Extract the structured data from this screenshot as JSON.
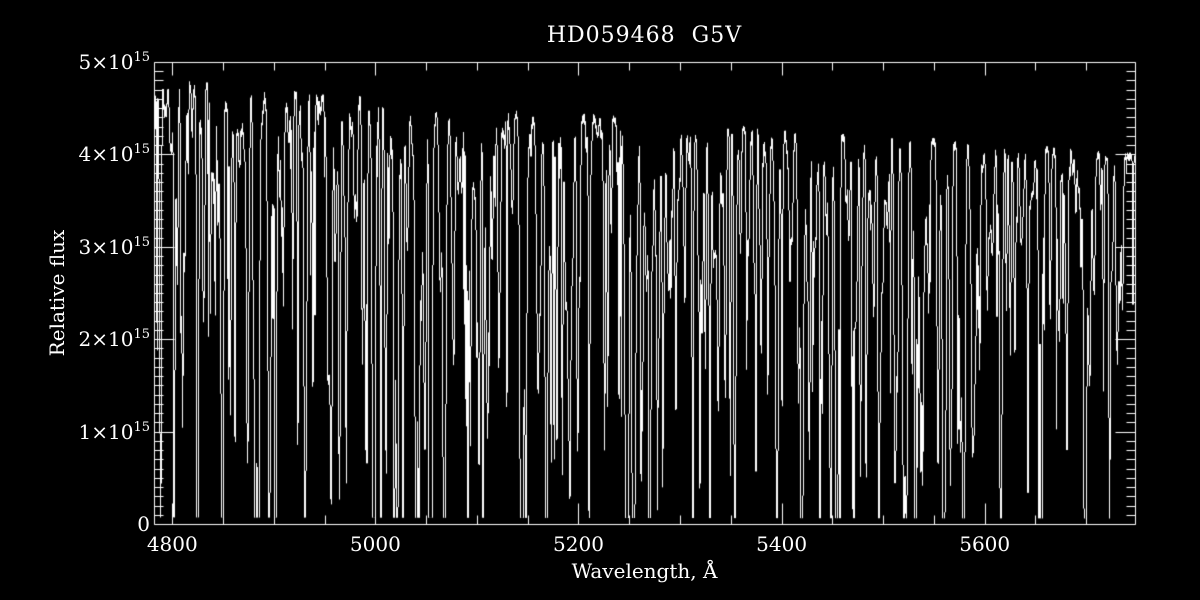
{
  "figure": {
    "background": "#000000",
    "foreground": "#ffffff"
  },
  "chart_data": {
    "type": "line",
    "title": "HD059468  G5V",
    "xlabel": "Wavelength, Å",
    "ylabel": "Relative flux",
    "xlim": [
      4782,
      5748
    ],
    "ylim": [
      0,
      5000000000000000.0
    ],
    "grid": "off",
    "legend": "none",
    "x_ticks": [
      {
        "value": 4800,
        "label": "4800"
      },
      {
        "value": 5000,
        "label": "5000"
      },
      {
        "value": 5200,
        "label": "5200"
      },
      {
        "value": 5400,
        "label": "5400"
      },
      {
        "value": 5600,
        "label": "5600"
      }
    ],
    "x_minor_step": 50,
    "y_ticks": [
      {
        "value": 5000000000000000.0,
        "mantissa": "5×10",
        "exp": "15"
      },
      {
        "value": 4000000000000000.0,
        "mantissa": "4×10",
        "exp": "15"
      },
      {
        "value": 3000000000000000.0,
        "mantissa": "3×10",
        "exp": "15"
      },
      {
        "value": 2000000000000000.0,
        "mantissa": "2×10",
        "exp": "15"
      },
      {
        "value": 1000000000000000.0,
        "mantissa": "1×10",
        "exp": "15"
      },
      {
        "value": 0,
        "mantissa": "0",
        "exp": ""
      }
    ],
    "y_minor_step": 100000000000000.0,
    "series_description": "Stellar absorption spectrum: continuum anchors plus absorption lines (flux vs wavelength in Angstroms)",
    "continuum": [
      [
        4782,
        4740000000000000.0
      ],
      [
        4800,
        4770000000000000.0
      ],
      [
        4830,
        4740000000000000.0
      ],
      [
        4861,
        4670000000000000.0
      ],
      [
        4890,
        4680000000000000.0
      ],
      [
        4920,
        4650000000000000.0
      ],
      [
        4950,
        4620000000000000.0
      ],
      [
        5000,
        4570000000000000.0
      ],
      [
        5050,
        4520000000000000.0
      ],
      [
        5100,
        4480000000000000.0
      ],
      [
        5150,
        4440000000000000.0
      ],
      [
        5200,
        4400000000000000.0
      ],
      [
        5250,
        4370000000000000.0
      ],
      [
        5300,
        4330000000000000.0
      ],
      [
        5350,
        4280000000000000.0
      ],
      [
        5400,
        4240000000000000.0
      ],
      [
        5450,
        4200000000000000.0
      ],
      [
        5500,
        4160000000000000.0
      ],
      [
        5550,
        4130000000000000.0
      ],
      [
        5600,
        4100000000000000.0
      ],
      [
        5650,
        4060000000000000.0
      ],
      [
        5700,
        4010000000000000.0
      ],
      [
        5748,
        3970000000000000.0
      ]
    ],
    "strong_lines": [
      {
        "wl": 4788.0,
        "flux_min": 2300000000000000.0,
        "sigma": 0.5
      },
      {
        "wl": 4808.0,
        "flux_min": 2550000000000000.0,
        "sigma": 0.5
      },
      {
        "wl": 4824.0,
        "flux_min": 2420000000000000.0,
        "sigma": 0.5
      },
      {
        "wl": 4837.0,
        "flux_min": 2400000000000000.0,
        "sigma": 0.5
      },
      {
        "wl": 4861.3,
        "flux_min": 880000000000000.0,
        "sigma": 0.55
      },
      {
        "wl": 4884.0,
        "flux_min": 1780000000000000.0,
        "sigma": 0.5
      },
      {
        "wl": 4901.0,
        "flux_min": 1990000000000000.0,
        "sigma": 0.5
      },
      {
        "wl": 4923.0,
        "flux_min": 1370000000000000.0,
        "sigma": 0.55
      },
      {
        "wl": 4938.0,
        "flux_min": 2250000000000000.0,
        "sigma": 0.5
      },
      {
        "wl": 4965.0,
        "flux_min": 1860000000000000.0,
        "sigma": 0.5
      },
      {
        "wl": 5005.0,
        "flux_min": 1990000000000000.0,
        "sigma": 0.5
      },
      {
        "wl": 5018.0,
        "flux_min": 1950000000000000.0,
        "sigma": 0.55
      },
      {
        "wl": 5042.0,
        "flux_min": 1750000000000000.0,
        "sigma": 0.5
      },
      {
        "wl": 5054.0,
        "flux_min": 2300000000000000.0,
        "sigma": 0.5
      },
      {
        "wl": 5093.0,
        "flux_min": 2100000000000000.0,
        "sigma": 0.5
      },
      {
        "wl": 5143.0,
        "flux_min": 1990000000000000.0,
        "sigma": 0.5
      },
      {
        "wl": 5167.3,
        "flux_min": 780000000000000.0,
        "sigma": 0.5
      },
      {
        "wl": 5172.7,
        "flux_min": 870000000000000.0,
        "sigma": 0.5
      },
      {
        "wl": 5183.6,
        "flux_min": 720000000000000.0,
        "sigma": 0.55
      },
      {
        "wl": 5210.0,
        "flux_min": 1310000000000000.0,
        "sigma": 0.5
      },
      {
        "wl": 5228.0,
        "flux_min": 1850000000000000.0,
        "sigma": 0.5
      },
      {
        "wl": 5261.0,
        "flux_min": 1560000000000000.0,
        "sigma": 0.5
      },
      {
        "wl": 5270.0,
        "flux_min": 1340000000000000.0,
        "sigma": 0.55
      },
      {
        "wl": 5329.0,
        "flux_min": 1310000000000000.0,
        "sigma": 0.5
      },
      {
        "wl": 5349.0,
        "flux_min": 1670000000000000.0,
        "sigma": 0.5
      },
      {
        "wl": 5374.0,
        "flux_min": 1500000000000000.0,
        "sigma": 0.5
      },
      {
        "wl": 5400.0,
        "flux_min": 1750000000000000.0,
        "sigma": 0.5
      },
      {
        "wl": 5430.0,
        "flux_min": 1470000000000000.0,
        "sigma": 0.5
      },
      {
        "wl": 5457.0,
        "flux_min": 1530000000000000.0,
        "sigma": 0.5
      },
      {
        "wl": 5477.0,
        "flux_min": 1880000000000000.0,
        "sigma": 0.5
      },
      {
        "wl": 5528.0,
        "flux_min": 1720000000000000.0,
        "sigma": 0.55
      },
      {
        "wl": 5615.0,
        "flux_min": 1670000000000000.0,
        "sigma": 0.55
      },
      {
        "wl": 5658.0,
        "flux_min": 2100000000000000.0,
        "sigma": 0.5
      },
      {
        "wl": 5699.0,
        "flux_min": 2420000000000000.0,
        "sigma": 0.5
      }
    ],
    "broad_bands": [
      {
        "center": 4861.3,
        "sigma": 6,
        "depth": 0.1
      },
      {
        "center": 5172.0,
        "sigma": 9,
        "depth": 0.07
      }
    ],
    "line_forest": {
      "count": 760,
      "seed": 20240917,
      "base_depth": 0.04,
      "max_depth": 0.78,
      "depth_power": 3.2,
      "min_sigma": 0.25,
      "max_sigma": 1.25
    },
    "noise_fraction": 0.012
  }
}
